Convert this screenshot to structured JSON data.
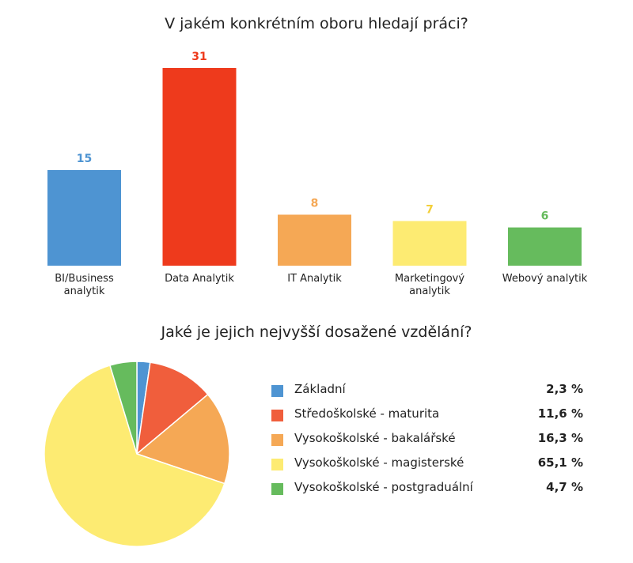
{
  "chart_data": [
    {
      "type": "bar",
      "title": "V jakém konkrétním oboru hledají práci?",
      "categories": [
        [
          "BI/Business",
          "analytik"
        ],
        [
          "Data Analytik"
        ],
        [
          "IT Analytik"
        ],
        [
          "Marketingový",
          "analytik"
        ],
        [
          "Webový analytik"
        ]
      ],
      "values": [
        15,
        31,
        8,
        7,
        6
      ],
      "colors": [
        "#4e94d2",
        "#ee3a1c",
        "#f5a855",
        "#fdeb72",
        "#66bb5d"
      ],
      "value_label_colors": [
        "#4e94d2",
        "#ee3a1c",
        "#f5a855",
        "#f3cf3a",
        "#66bb5d"
      ],
      "ylim": [
        0,
        31
      ]
    },
    {
      "type": "pie",
      "title": "Jaké je jejich nejvyšší dosažené vzdělání?",
      "labels": [
        "Základní",
        "Středoškolské - maturita",
        "Vysokoškolské - bakalářské",
        "Vysokoškolské - magisterské",
        "Vysokoškolské - postgraduální"
      ],
      "values": [
        2.3,
        11.6,
        16.3,
        65.1,
        4.7
      ],
      "value_labels": [
        "2,3 %",
        "11,6 %",
        "16,3 %",
        "65,1 %",
        "4,7 %"
      ],
      "colors": [
        "#4e94d2",
        "#f05e3c",
        "#f5a855",
        "#fdeb72",
        "#66bb5d"
      ]
    }
  ]
}
